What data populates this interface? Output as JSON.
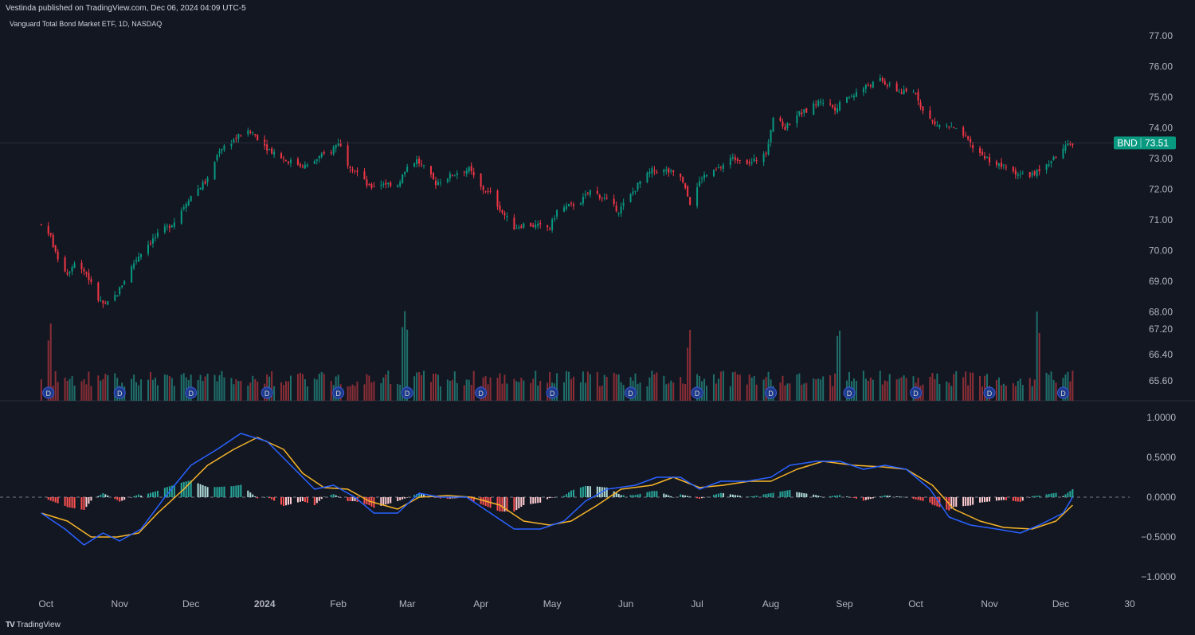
{
  "header": {
    "published": "Vestinda published on TradingView.com, Dec 06, 2024 04:09 UTC-5",
    "symbol_title": "Vanguard Total Bond Market ETF, 1D, NASDAQ"
  },
  "footer": {
    "logo_text": "TradingView"
  },
  "colors": {
    "background": "#131722",
    "up": "#089981",
    "down": "#f23645",
    "volume_up": "#1f6f6a",
    "volume_down": "#8a2e36",
    "macd": "#2962ff",
    "signal": "#f7b529",
    "last_price_bg": "#089981",
    "dividend_marker": "#1e3a8a"
  },
  "chart_data": [
    {
      "type": "candlestick",
      "name": "BND",
      "last_price": "73.51",
      "last_label": "BND",
      "price_ticks": [
        "77.00",
        "76.00",
        "75.00",
        "74.00",
        "73.00",
        "72.00",
        "71.00",
        "70.00",
        "69.00",
        "68.00",
        "67.20",
        "66.40",
        "65.60"
      ],
      "ylim": [
        68.0,
        77.0
      ],
      "x_labels": [
        "Oct",
        "Nov",
        "Dec",
        "2024",
        "Feb",
        "Mar",
        "Apr",
        "May",
        "Jun",
        "Jul",
        "Aug",
        "Sep",
        "Oct",
        "Nov",
        "Dec",
        "30"
      ],
      "close_path": [
        [
          "2023-09-29",
          70.85
        ],
        [
          "2023-10-03",
          70.45
        ],
        [
          "2023-10-05",
          69.9
        ],
        [
          "2023-10-10",
          69.25
        ],
        [
          "2023-10-13",
          69.65
        ],
        [
          "2023-10-18",
          69.25
        ],
        [
          "2023-10-23",
          68.4
        ],
        [
          "2023-10-26",
          68.2
        ],
        [
          "2023-10-31",
          68.6
        ],
        [
          "2023-11-03",
          69.05
        ],
        [
          "2023-11-07",
          69.6
        ],
        [
          "2023-11-10",
          69.95
        ],
        [
          "2023-11-14",
          70.3
        ],
        [
          "2023-11-20",
          70.7
        ],
        [
          "2023-11-24",
          70.95
        ],
        [
          "2023-11-30",
          71.7
        ],
        [
          "2023-12-05",
          72.1
        ],
        [
          "2023-12-08",
          72.3
        ],
        [
          "2023-12-13",
          73.3
        ],
        [
          "2023-12-18",
          73.55
        ],
        [
          "2023-12-22",
          73.8
        ],
        [
          "2023-12-27",
          73.85
        ],
        [
          "2024-01-02",
          73.35
        ],
        [
          "2024-01-05",
          73.2
        ],
        [
          "2024-01-10",
          72.95
        ],
        [
          "2024-01-16",
          72.8
        ],
        [
          "2024-01-19",
          72.75
        ],
        [
          "2024-01-24",
          73.05
        ],
        [
          "2024-01-29",
          73.25
        ],
        [
          "2024-02-01",
          73.55
        ],
        [
          "2024-02-05",
          72.85
        ],
        [
          "2024-02-09",
          72.55
        ],
        [
          "2024-02-14",
          72.05
        ],
        [
          "2024-02-20",
          72.2
        ],
        [
          "2024-02-26",
          72.15
        ],
        [
          "2024-03-01",
          72.75
        ],
        [
          "2024-03-05",
          72.95
        ],
        [
          "2024-03-08",
          72.7
        ],
        [
          "2024-03-13",
          72.2
        ],
        [
          "2024-03-18",
          72.4
        ],
        [
          "2024-03-22",
          72.55
        ],
        [
          "2024-03-27",
          72.65
        ],
        [
          "2024-04-01",
          72.05
        ],
        [
          "2024-04-05",
          71.85
        ],
        [
          "2024-04-10",
          71.25
        ],
        [
          "2024-04-15",
          70.75
        ],
        [
          "2024-04-19",
          70.85
        ],
        [
          "2024-04-25",
          70.8
        ],
        [
          "2024-04-30",
          70.75
        ],
        [
          "2024-05-03",
          71.3
        ],
        [
          "2024-05-08",
          71.45
        ],
        [
          "2024-05-13",
          71.6
        ],
        [
          "2024-05-17",
          71.95
        ],
        [
          "2024-05-22",
          71.75
        ],
        [
          "2024-05-29",
          71.3
        ],
        [
          "2024-06-03",
          71.8
        ],
        [
          "2024-06-07",
          72.25
        ],
        [
          "2024-06-12",
          72.6
        ],
        [
          "2024-06-18",
          72.6
        ],
        [
          "2024-06-24",
          72.4
        ],
        [
          "2024-06-28",
          71.55
        ],
        [
          "2024-07-03",
          72.4
        ],
        [
          "2024-07-09",
          72.6
        ],
        [
          "2024-07-15",
          73.0
        ],
        [
          "2024-07-19",
          73.0
        ],
        [
          "2024-07-24",
          72.85
        ],
        [
          "2024-07-30",
          73.25
        ],
        [
          "2024-08-02",
          74.35
        ],
        [
          "2024-08-07",
          74.0
        ],
        [
          "2024-08-12",
          74.45
        ],
        [
          "2024-08-16",
          74.55
        ],
        [
          "2024-08-22",
          74.9
        ],
        [
          "2024-08-28",
          74.65
        ],
        [
          "2024-09-04",
          75.05
        ],
        [
          "2024-09-10",
          75.35
        ],
        [
          "2024-09-16",
          75.55
        ],
        [
          "2024-09-20",
          75.35
        ],
        [
          "2024-09-25",
          75.15
        ],
        [
          "2024-10-01",
          75.15
        ],
        [
          "2024-10-04",
          74.55
        ],
        [
          "2024-10-09",
          74.1
        ],
        [
          "2024-10-15",
          74.05
        ],
        [
          "2024-10-21",
          73.75
        ],
        [
          "2024-10-25",
          73.35
        ],
        [
          "2024-10-31",
          73.0
        ],
        [
          "2024-11-06",
          72.75
        ],
        [
          "2024-11-12",
          72.55
        ],
        [
          "2024-11-15",
          72.45
        ],
        [
          "2024-11-20",
          72.5
        ],
        [
          "2024-11-26",
          72.85
        ],
        [
          "2024-12-02",
          73.3
        ],
        [
          "2024-12-06",
          73.51
        ]
      ]
    },
    {
      "type": "bar",
      "name": "Volume",
      "note_markers": "D",
      "marker_dates": [
        "2023-10-02",
        "2023-11-01",
        "2023-12-01",
        "2024-01-02",
        "2024-02-01",
        "2024-03-01",
        "2024-04-01",
        "2024-05-01",
        "2024-06-03",
        "2024-07-01",
        "2024-08-01",
        "2024-09-03",
        "2024-10-01",
        "2024-11-01",
        "2024-12-02"
      ],
      "spike_dates": [
        "2023-10-02",
        "2024-02-29",
        "2024-03-01",
        "2024-06-28",
        "2024-08-30",
        "2024-11-22"
      ]
    },
    {
      "type": "line",
      "name": "MACD",
      "yticks": [
        "1.0000",
        "0.5000",
        "0.0000",
        "−0.5000",
        "−1.0000"
      ],
      "ylim": [
        -1.0,
        1.0
      ],
      "series": [
        {
          "name": "MACD",
          "values": [
            [
              "2023-09-29",
              -0.2
            ],
            [
              "2023-10-09",
              -0.4
            ],
            [
              "2023-10-17",
              -0.6
            ],
            [
              "2023-10-25",
              -0.45
            ],
            [
              "2023-11-01",
              -0.55
            ],
            [
              "2023-11-10",
              -0.4
            ],
            [
              "2023-11-20",
              0.0
            ],
            [
              "2023-12-01",
              0.4
            ],
            [
              "2023-12-12",
              0.6
            ],
            [
              "2023-12-22",
              0.8
            ],
            [
              "2024-01-02",
              0.7
            ],
            [
              "2024-01-12",
              0.4
            ],
            [
              "2024-01-22",
              0.1
            ],
            [
              "2024-01-30",
              0.15
            ],
            [
              "2024-02-08",
              0.0
            ],
            [
              "2024-02-16",
              -0.2
            ],
            [
              "2024-02-26",
              -0.2
            ],
            [
              "2024-03-06",
              0.05
            ],
            [
              "2024-03-15",
              0.0
            ],
            [
              "2024-03-26",
              0.0
            ],
            [
              "2024-04-05",
              -0.2
            ],
            [
              "2024-04-15",
              -0.4
            ],
            [
              "2024-04-26",
              -0.4
            ],
            [
              "2024-05-06",
              -0.3
            ],
            [
              "2024-05-15",
              -0.05
            ],
            [
              "2024-05-24",
              0.1
            ],
            [
              "2024-06-05",
              0.15
            ],
            [
              "2024-06-14",
              0.25
            ],
            [
              "2024-06-24",
              0.25
            ],
            [
              "2024-07-02",
              0.1
            ],
            [
              "2024-07-11",
              0.2
            ],
            [
              "2024-07-22",
              0.2
            ],
            [
              "2024-08-01",
              0.25
            ],
            [
              "2024-08-09",
              0.4
            ],
            [
              "2024-08-20",
              0.45
            ],
            [
              "2024-08-30",
              0.45
            ],
            [
              "2024-09-09",
              0.35
            ],
            [
              "2024-09-18",
              0.4
            ],
            [
              "2024-09-27",
              0.35
            ],
            [
              "2024-10-07",
              0.1
            ],
            [
              "2024-10-15",
              -0.25
            ],
            [
              "2024-10-24",
              -0.35
            ],
            [
              "2024-11-04",
              -0.4
            ],
            [
              "2024-11-14",
              -0.45
            ],
            [
              "2024-11-22",
              -0.35
            ],
            [
              "2024-12-02",
              -0.2
            ],
            [
              "2024-12-06",
              0.0
            ]
          ]
        },
        {
          "name": "Signal",
          "values": [
            [
              "2023-09-29",
              -0.2
            ],
            [
              "2023-10-10",
              -0.3
            ],
            [
              "2023-10-20",
              -0.5
            ],
            [
              "2023-10-31",
              -0.5
            ],
            [
              "2023-11-09",
              -0.45
            ],
            [
              "2023-11-17",
              -0.2
            ],
            [
              "2023-11-28",
              0.1
            ],
            [
              "2023-12-08",
              0.4
            ],
            [
              "2023-12-19",
              0.6
            ],
            [
              "2023-12-29",
              0.75
            ],
            [
              "2024-01-09",
              0.6
            ],
            [
              "2024-01-17",
              0.3
            ],
            [
              "2024-01-26",
              0.12
            ],
            [
              "2024-02-05",
              0.1
            ],
            [
              "2024-02-14",
              -0.05
            ],
            [
              "2024-02-26",
              -0.15
            ],
            [
              "2024-03-06",
              0.0
            ],
            [
              "2024-03-18",
              0.02
            ],
            [
              "2024-03-28",
              0.0
            ],
            [
              "2024-04-09",
              -0.1
            ],
            [
              "2024-04-19",
              -0.3
            ],
            [
              "2024-04-30",
              -0.35
            ],
            [
              "2024-05-09",
              -0.3
            ],
            [
              "2024-05-20",
              -0.1
            ],
            [
              "2024-05-30",
              0.1
            ],
            [
              "2024-06-12",
              0.15
            ],
            [
              "2024-06-21",
              0.25
            ],
            [
              "2024-07-02",
              0.12
            ],
            [
              "2024-07-12",
              0.15
            ],
            [
              "2024-07-23",
              0.2
            ],
            [
              "2024-08-01",
              0.2
            ],
            [
              "2024-08-12",
              0.35
            ],
            [
              "2024-08-23",
              0.45
            ],
            [
              "2024-09-05",
              0.4
            ],
            [
              "2024-09-17",
              0.38
            ],
            [
              "2024-09-27",
              0.35
            ],
            [
              "2024-10-08",
              0.15
            ],
            [
              "2024-10-17",
              -0.15
            ],
            [
              "2024-10-28",
              -0.3
            ],
            [
              "2024-11-07",
              -0.38
            ],
            [
              "2024-11-19",
              -0.4
            ],
            [
              "2024-11-29",
              -0.3
            ],
            [
              "2024-12-06",
              -0.1
            ]
          ]
        }
      ]
    }
  ]
}
